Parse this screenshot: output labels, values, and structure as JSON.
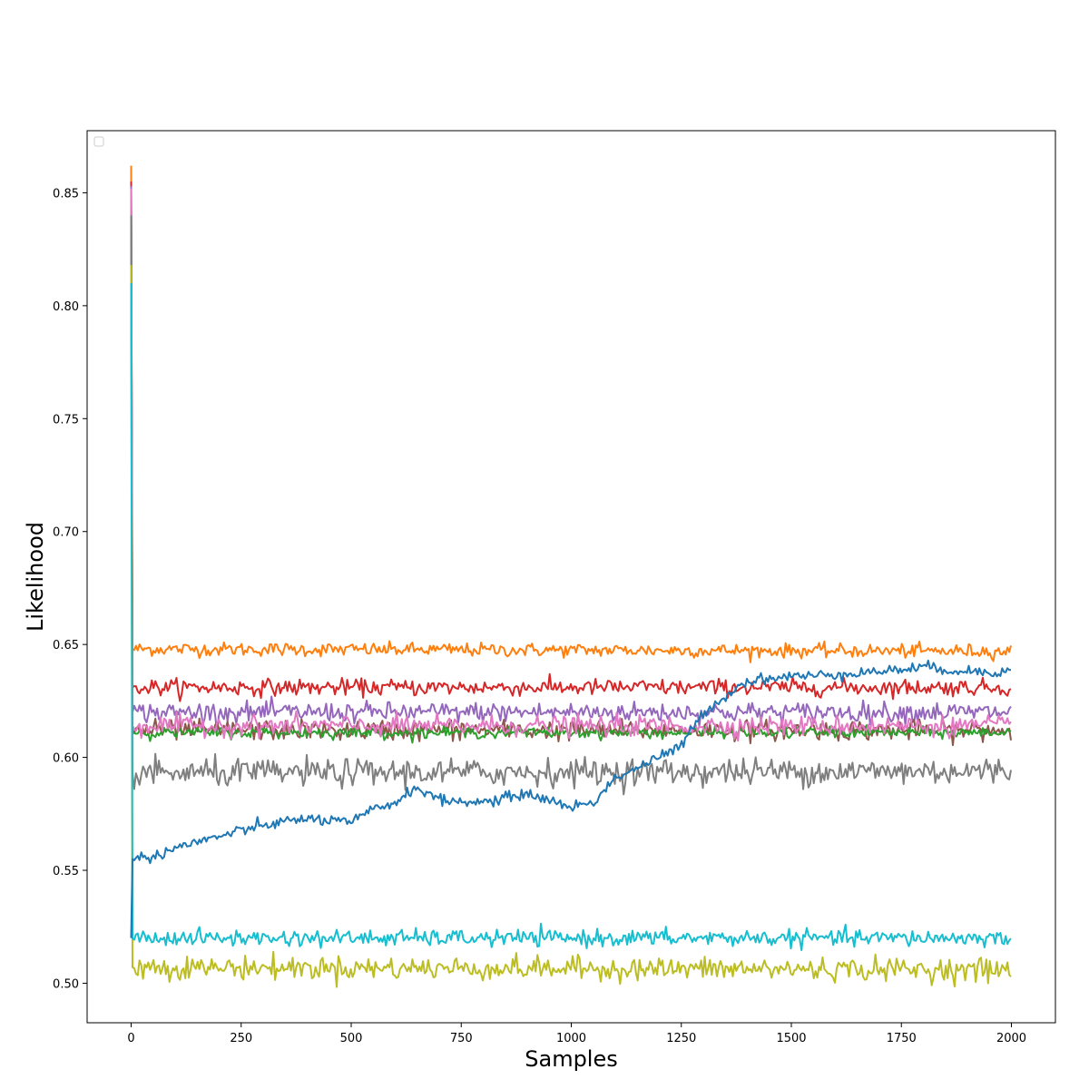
{
  "chart_data": {
    "type": "line",
    "title": "",
    "xlabel": "Samples",
    "ylabel": "Likelihood",
    "xlim": [
      -100,
      2100
    ],
    "ylim": [
      0.4825,
      0.8775
    ],
    "x_ticks": [
      0,
      250,
      500,
      750,
      1000,
      1250,
      1500,
      1750,
      2000
    ],
    "y_ticks": [
      0.5,
      0.55,
      0.6,
      0.65,
      0.7,
      0.75,
      0.8,
      0.85
    ],
    "y_tick_format": 2,
    "grid": false,
    "legend": {
      "placement": "top-left",
      "entries": []
    },
    "n_samples": 2000,
    "series": [
      {
        "color": "#ff7f0e",
        "start": 0.862,
        "points": [
          [
            3,
            0.648
          ],
          [
            2000,
            0.647
          ]
        ],
        "noise": 0.0015
      },
      {
        "color": "#d62728",
        "start": 0.855,
        "points": [
          [
            3,
            0.631
          ],
          [
            2000,
            0.631
          ]
        ],
        "noise": 0.0018
      },
      {
        "color": "#9467bd",
        "start": 0.853,
        "points": [
          [
            3,
            0.62
          ],
          [
            2000,
            0.62
          ]
        ],
        "noise": 0.0022
      },
      {
        "color": "#8c564b",
        "start": 0.85,
        "points": [
          [
            3,
            0.612
          ],
          [
            2000,
            0.612
          ]
        ],
        "noise": 0.0022
      },
      {
        "color": "#2ca02c",
        "start": 0.846,
        "points": [
          [
            3,
            0.611
          ],
          [
            2000,
            0.611
          ]
        ],
        "noise": 0.0012
      },
      {
        "color": "#e377c2",
        "start": 0.852,
        "points": [
          [
            3,
            0.614
          ],
          [
            2000,
            0.614
          ]
        ],
        "noise": 0.0022
      },
      {
        "color": "#7f7f7f",
        "start": 0.84,
        "points": [
          [
            3,
            0.593
          ],
          [
            2000,
            0.594
          ]
        ],
        "noise": 0.003
      },
      {
        "color": "#bcbd22",
        "start": 0.818,
        "points": [
          [
            3,
            0.507
          ],
          [
            2000,
            0.506
          ]
        ],
        "noise": 0.0025
      },
      {
        "color": "#17becf",
        "start": 0.81,
        "points": [
          [
            3,
            0.52
          ],
          [
            2000,
            0.52
          ]
        ],
        "noise": 0.0018
      },
      {
        "color": "#1f77b4",
        "start": 0.52,
        "points": [
          [
            3,
            0.555
          ],
          [
            50,
            0.556
          ],
          [
            100,
            0.56
          ],
          [
            200,
            0.565
          ],
          [
            300,
            0.57
          ],
          [
            400,
            0.573
          ],
          [
            500,
            0.571
          ],
          [
            550,
            0.577
          ],
          [
            600,
            0.58
          ],
          [
            650,
            0.587
          ],
          [
            700,
            0.581
          ],
          [
            800,
            0.58
          ],
          [
            900,
            0.584
          ],
          [
            1000,
            0.578
          ],
          [
            1050,
            0.58
          ],
          [
            1100,
            0.591
          ],
          [
            1200,
            0.6
          ],
          [
            1250,
            0.605
          ],
          [
            1300,
            0.62
          ],
          [
            1400,
            0.634
          ],
          [
            1500,
            0.636
          ],
          [
            1550,
            0.636
          ],
          [
            1600,
            0.637
          ],
          [
            1700,
            0.638
          ],
          [
            1800,
            0.64
          ],
          [
            1900,
            0.638
          ],
          [
            2000,
            0.638
          ]
        ],
        "noise": 0.0012
      }
    ]
  }
}
